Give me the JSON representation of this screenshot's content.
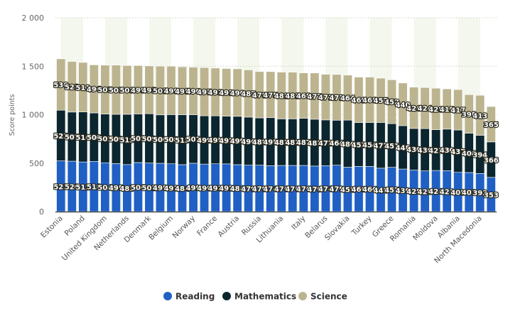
{
  "chart_data": {
    "type": "bar",
    "stacked": true,
    "title": "",
    "xlabel": "",
    "ylabel": "Score points",
    "ylim": [
      0,
      2000
    ],
    "yticks": [
      0,
      500,
      1000,
      1500,
      2000
    ],
    "ytick_labels": [
      "0",
      "500",
      "1 000",
      "1 500",
      "2 000"
    ],
    "grid": "horizontal dotted",
    "legend": "bottom",
    "categories": [
      "Estonia",
      "",
      "Poland",
      "",
      "United Kingdom",
      "",
      "Netherlands",
      "",
      "Denmark",
      "",
      "Belgium",
      "",
      "Norway",
      "",
      "France",
      "",
      "Austria",
      "",
      "Russia",
      "",
      "Lithuania",
      "",
      "Italy",
      "",
      "Belarus",
      "",
      "Slovakia",
      "",
      "Turkey",
      "",
      "Greece",
      "",
      "Romania",
      "",
      "Moldova",
      "",
      "Albania",
      "",
      "North Macedonia",
      ""
    ],
    "series": [
      {
        "name": "Reading",
        "color": "#2060c4",
        "values": [
          523,
          520,
          512,
          518,
          504,
          495,
          485,
          506,
          501,
          498,
          493,
          484,
          499,
          490,
          493,
          492,
          484,
          479,
          479,
          474,
          476,
          476,
          476,
          470,
          474,
          479,
          458,
          466,
          466,
          448,
          457,
          439,
          428,
          420,
          424,
          421,
          405,
          403,
          393,
          353
        ]
      },
      {
        "name": "Mathematics",
        "color": "#0c2630",
        "values": [
          523,
          507,
          516,
          500,
          502,
          509,
          519,
          502,
          509,
          500,
          508,
          515,
          501,
          499,
          495,
          492,
          499,
          496,
          488,
          495,
          481,
          481,
          487,
          483,
          472,
          464,
          486,
          453,
          454,
          472,
          451,
          448,
          430,
          436,
          421,
          430,
          437,
          406,
          394,
          366
        ]
      },
      {
        "name": "Science",
        "color": "#bcb48f",
        "values": [
          530,
          522,
          511,
          496,
          505,
          507,
          503,
          499,
          493,
          503,
          499,
          495,
          490,
          497,
          493,
          492,
          490,
          487,
          478,
          475,
          482,
          481,
          468,
          477,
          471,
          472,
          464,
          469,
          468,
          457,
          452,
          440,
          426,
          424,
          428,
          415,
          417,
          398,
          413,
          365
        ]
      }
    ]
  }
}
